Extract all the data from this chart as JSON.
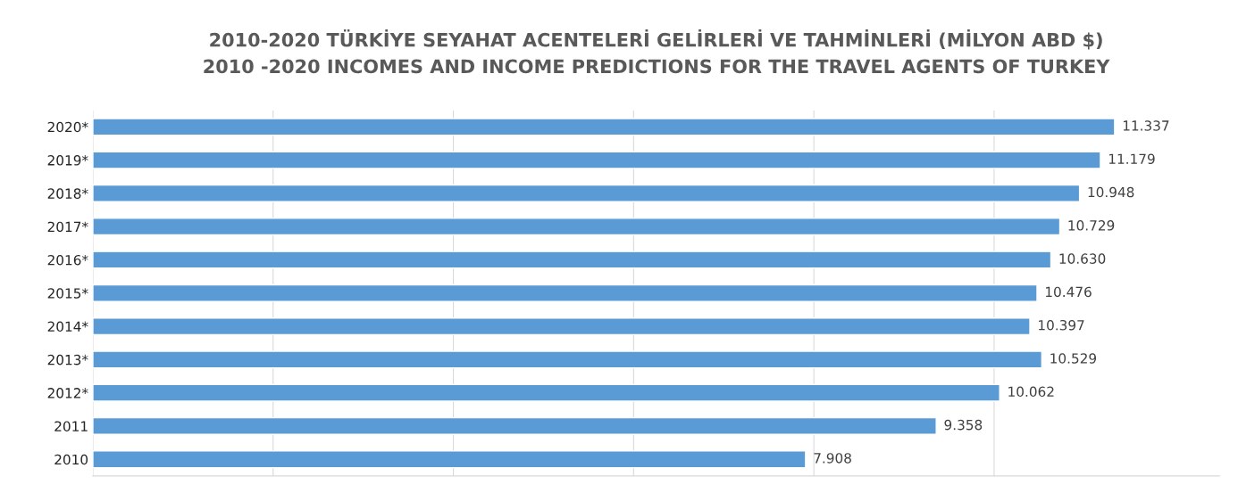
{
  "chart_data": {
    "type": "bar",
    "orientation": "horizontal",
    "title": "2010-2020 TÜRKİYE SEYAHAT ACENTELERİ GELİRLERİ VE TAHMİNLERİ (MİLYON ABD $)\n2010 -2020 INCOMES AND INCOME PREDICTIONS FOR THE TRAVEL AGENTS OF TURKEY",
    "categories": [
      "2020*",
      "2019*",
      "2018*",
      "2017*",
      "2016*",
      "2015*",
      "2014*",
      "2013*",
      "2012*",
      "2011",
      "2010"
    ],
    "values": [
      11337,
      11179,
      10948,
      10729,
      10630,
      10476,
      10397,
      10529,
      10062,
      9358,
      7908
    ],
    "value_labels": [
      "11.337",
      "11.179",
      "10.948",
      "10.729",
      "10.630",
      "10.476",
      "10.397",
      "10.529",
      "10.062",
      "9.358",
      "7.908"
    ],
    "color": "#5b9bd5",
    "xlim": [
      0,
      12500
    ],
    "xticks": [
      {
        "value": 0,
        "label": null
      },
      {
        "value": 2000,
        "label": null
      },
      {
        "value": 4000,
        "label": null
      },
      {
        "value": 6000,
        "label": null
      },
      {
        "value": 8000,
        "label": null
      },
      {
        "value": 10000,
        "label": null
      }
    ],
    "grid": "x",
    "tick_labels": "y",
    "legend": false
  }
}
